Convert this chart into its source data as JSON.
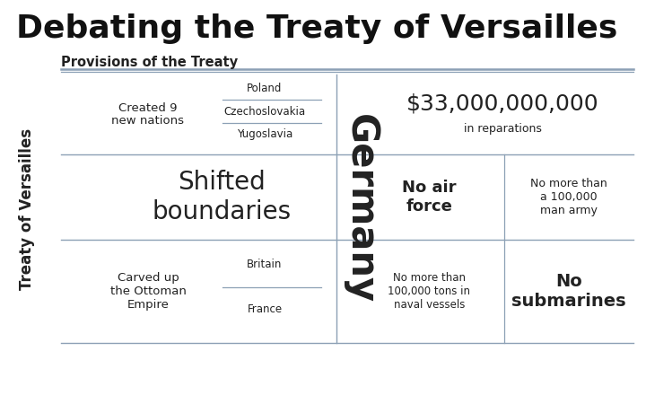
{
  "title_parts": [
    {
      "text": "D",
      "big": true
    },
    {
      "text": "EBATING THE ",
      "big": false
    },
    {
      "text": "T",
      "big": true
    },
    {
      "text": "REATY OF ",
      "big": false
    },
    {
      "text": "V",
      "big": true
    },
    {
      "text": "ERSAILLES",
      "big": false
    }
  ],
  "title_full": "DEBATING THE TREATY OF VERSAILLES",
  "subtitle": "Provisions of the Treaty",
  "bg_color": "#ffffff",
  "left_side_label": "Treaty of Versailles",
  "center_label": "Germany",
  "row1_left_main": "Created 9\nnew nations",
  "row1_items": [
    "Poland",
    "Czechoslovakia",
    "Yugoslavia"
  ],
  "row2_left_main": "Shifted\nboundaries",
  "row3_left_main": "Carved up\nthe Ottoman\nEmpire",
  "row3_items": [
    "Britain",
    "France"
  ],
  "right_row1_main": "$33,000,000,000",
  "right_row1_sub": "in reparations",
  "right_row2_left": "No air\nforce",
  "right_row2_right": "No more than\na 100,000\nman army",
  "right_row3_left": "No more than\n100,000 tons in\nnaval vessels",
  "right_row3_right": "No\nsubmarines",
  "line_color": "#8ca0b5",
  "title_color": "#111111",
  "text_color": "#222222"
}
